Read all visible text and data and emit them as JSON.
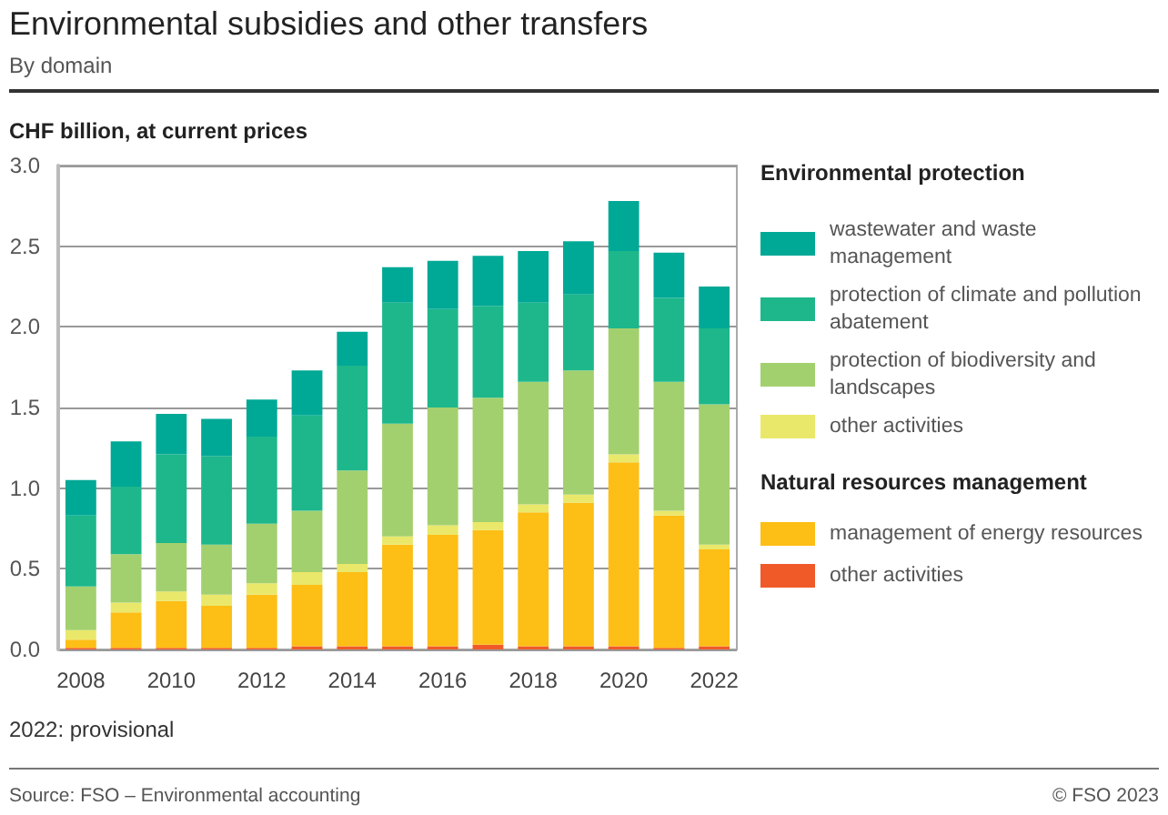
{
  "chart_data": {
    "type": "bar",
    "title": "Environmental subsidies and other transfers",
    "subtitle": "By domain",
    "ylabel": "CHF billion, at current prices",
    "legend_title": [
      "Environmental protection",
      "Natural resources management"
    ],
    "annotations": [
      "2022: provisional",
      "Source: FSO – Environmental accounting",
      "© FSO 2023"
    ],
    "categories": [
      "2008",
      null,
      "2010",
      null,
      "2012",
      null,
      "2014",
      null,
      "2016",
      null,
      "2018",
      null,
      "2020",
      null,
      "2022"
    ],
    "series": [
      {
        "name": "other activities",
        "color": "#f05a28",
        "values": [
          0.01,
          0.01,
          0.01,
          0.01,
          0.01,
          0.02,
          0.02,
          0.02,
          0.02,
          0.03,
          0.02,
          0.02,
          0.02,
          0.01,
          0.02
        ]
      },
      {
        "name": "management of energy resources",
        "color": "#fdbe15",
        "values": [
          0.05,
          0.22,
          0.29,
          0.26,
          0.33,
          0.38,
          0.46,
          0.63,
          0.69,
          0.71,
          0.83,
          0.89,
          1.14,
          0.82,
          0.6
        ]
      },
      {
        "name": "other activities",
        "color": "#eae86a",
        "values": [
          0.06,
          0.06,
          0.06,
          0.07,
          0.07,
          0.08,
          0.05,
          0.05,
          0.06,
          0.05,
          0.05,
          0.05,
          0.05,
          0.03,
          0.03
        ]
      },
      {
        "name": "protection of biodiversity and landscapes",
        "color": "#a3d06e",
        "values": [
          0.27,
          0.3,
          0.3,
          0.31,
          0.37,
          0.38,
          0.58,
          0.7,
          0.73,
          0.77,
          0.76,
          0.77,
          0.78,
          0.8,
          0.87
        ]
      },
      {
        "name": "protection of climate and pollution abatement",
        "color": "#1db78b",
        "values": [
          0.44,
          0.42,
          0.55,
          0.55,
          0.54,
          0.59,
          0.65,
          0.75,
          0.61,
          0.57,
          0.49,
          0.47,
          0.48,
          0.52,
          0.47
        ]
      },
      {
        "name": "wastewater and waste management",
        "color": "#00a896",
        "values": [
          0.22,
          0.28,
          0.25,
          0.23,
          0.23,
          0.28,
          0.21,
          0.22,
          0.3,
          0.31,
          0.32,
          0.33,
          0.31,
          0.28,
          0.26
        ]
      }
    ],
    "stacked": true,
    "ylim": [
      0,
      3
    ],
    "yticks": [
      {
        "value": 0,
        "label": "0.0"
      },
      {
        "value": 0.5,
        "label": "0.5"
      },
      {
        "value": 1,
        "label": "1.0"
      },
      {
        "value": 1.5,
        "label": "1.5"
      },
      {
        "value": 2,
        "label": "2.0"
      },
      {
        "value": 2.5,
        "label": "2.5"
      },
      {
        "value": 3,
        "label": "3.0"
      }
    ],
    "grid": "y",
    "legend": "right"
  }
}
